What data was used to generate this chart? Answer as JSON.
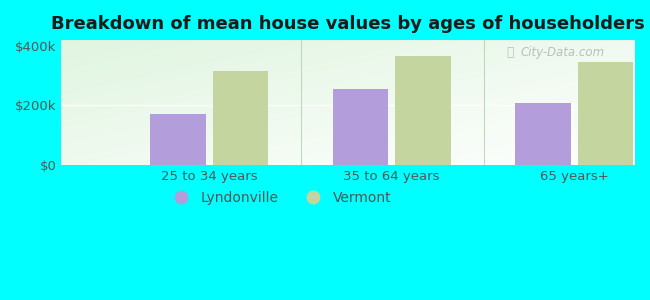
{
  "title": "Breakdown of mean house values by ages of householders",
  "categories": [
    "25 to 34 years",
    "35 to 64 years",
    "65 years+"
  ],
  "lyndonville_values": [
    170000,
    255000,
    208000
  ],
  "vermont_values": [
    315000,
    365000,
    348000
  ],
  "lyndonville_color": "#b39ddb",
  "vermont_color": "#c5d5a0",
  "ylim": [
    0,
    420000
  ],
  "yticks": [
    0,
    200000,
    400000
  ],
  "ytick_labels": [
    "$0",
    "$200k",
    "$400k"
  ],
  "fig_bg_color": "#00ffff",
  "plot_bg_color": "#eaf5e8",
  "legend_labels": [
    "Lyndonville",
    "Vermont"
  ],
  "bar_width": 0.32,
  "title_fontsize": 13,
  "tick_fontsize": 9.5,
  "legend_fontsize": 10,
  "tick_color": "#555555",
  "watermark_text": "City-Data.com"
}
